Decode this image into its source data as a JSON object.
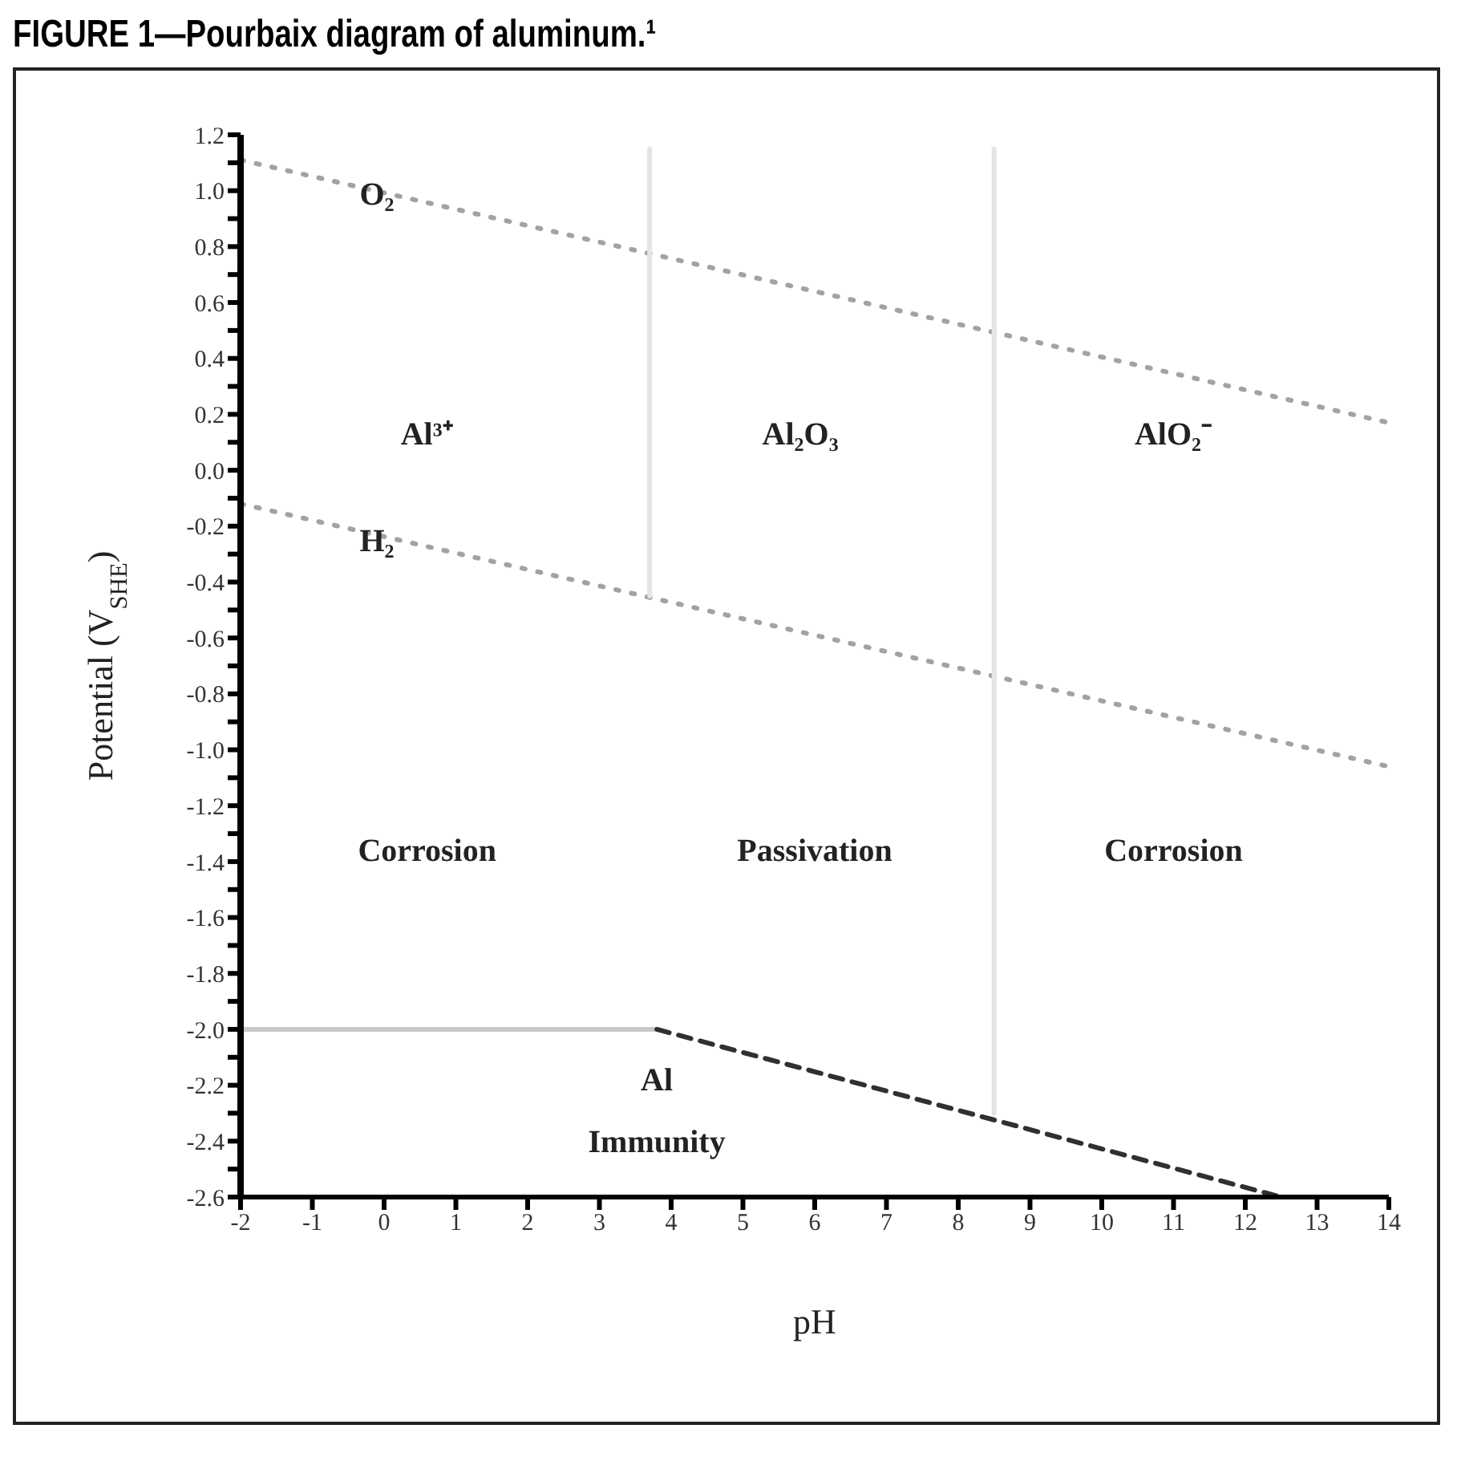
{
  "chart_data": {
    "type": "line",
    "title": "FIGURE 1—Pourbaix diagram of aluminum.¹",
    "xlabel": "pH",
    "ylabel": "Potential (V$_{SHE}$)",
    "series": [
      {
        "color": "#a8a0a0",
        "line_style": "dotted",
        "x": [
          -2,
          14
        ],
        "values": [
          1.11,
          0.17
        ]
      },
      {
        "color": "#a8a0a0",
        "line_style": "dotted",
        "x": [
          -2,
          14
        ],
        "values": [
          -0.12,
          -1.06
        ]
      },
      {
        "color": "#c8c8c8",
        "line_style": "solid",
        "x": [
          -2,
          3.8
        ],
        "values": [
          -2.0,
          -2.0
        ]
      },
      {
        "color": "#303030",
        "line_style": "dashed",
        "x": [
          3.8,
          12.5
        ],
        "values": [
          -2.0,
          -2.6
        ]
      },
      {
        "color": "#e4e4e4",
        "line_style": "solid",
        "x": [
          3.7,
          3.7
        ],
        "values": [
          1.15,
          -0.45
        ]
      },
      {
        "color": "#e4e4e4",
        "line_style": "solid",
        "x": [
          8.5,
          8.5
        ],
        "values": [
          1.15,
          -2.3
        ]
      }
    ],
    "xlim": [
      -2,
      14
    ],
    "xticks": [
      -2,
      -1,
      0,
      1,
      2,
      3,
      4,
      5,
      6,
      7,
      8,
      9,
      10,
      11,
      12,
      13,
      14
    ],
    "ylim": [
      -2.6,
      1.2
    ],
    "yticks": [
      {
        "value": 1.2,
        "label": "1.2"
      },
      {
        "value": 1.1,
        "label": null
      },
      {
        "value": 1.0,
        "label": "1.0"
      },
      {
        "value": 0.9,
        "label": null
      },
      {
        "value": 0.8,
        "label": "0.8"
      },
      {
        "value": 0.7,
        "label": null
      },
      {
        "value": 0.6,
        "label": "0.6"
      },
      {
        "value": 0.5,
        "label": null
      },
      {
        "value": 0.4,
        "label": "0.4"
      },
      {
        "value": 0.3,
        "label": null
      },
      {
        "value": 0.2,
        "label": "0.2"
      },
      {
        "value": 0.1,
        "label": null
      },
      {
        "value": 0,
        "label": "0.0"
      },
      {
        "value": -0.1,
        "label": null
      },
      {
        "value": -0.2,
        "label": "-0.2"
      },
      {
        "value": -0.3,
        "label": null
      },
      {
        "value": -0.4,
        "label": "-0.4"
      },
      {
        "value": -0.5,
        "label": null
      },
      {
        "value": -0.6,
        "label": "-0.6"
      },
      {
        "value": -0.7,
        "label": null
      },
      {
        "value": -0.8,
        "label": "-0.8"
      },
      {
        "value": -0.9,
        "label": null
      },
      {
        "value": -1.0,
        "label": "-1.0"
      },
      {
        "value": -1.1,
        "label": null
      },
      {
        "value": -1.2,
        "label": "-1.2"
      },
      {
        "value": -1.3,
        "label": null
      },
      {
        "value": -1.4,
        "label": "-1.4"
      },
      {
        "value": -1.5,
        "label": null
      },
      {
        "value": -1.6,
        "label": "-1.6"
      },
      {
        "value": -1.7,
        "label": null
      },
      {
        "value": -1.8,
        "label": "-1.8"
      },
      {
        "value": -1.9,
        "label": null
      },
      {
        "value": -2.0,
        "label": "-2.0"
      },
      {
        "value": -2.1,
        "label": null
      },
      {
        "value": -2.2,
        "label": "-2.2"
      },
      {
        "value": -2.3,
        "label": null
      },
      {
        "value": -2.4,
        "label": "-2.4"
      },
      {
        "value": -2.5,
        "label": null
      },
      {
        "value": -2.6,
        "label": "-2.6"
      }
    ],
    "grid": false,
    "legend": false,
    "marker": "none",
    "annotations": [
      {
        "text": "O₂",
        "x": -0.1,
        "y": 0.98
      },
      {
        "text": "H₂",
        "x": -0.1,
        "y": -0.26
      },
      "Al³⁺",
      "Al₂O₃",
      "AlO₂⁻",
      "Corrosion",
      "Passivation",
      "Corrosion",
      "Al",
      "Immunity"
    ]
  }
}
